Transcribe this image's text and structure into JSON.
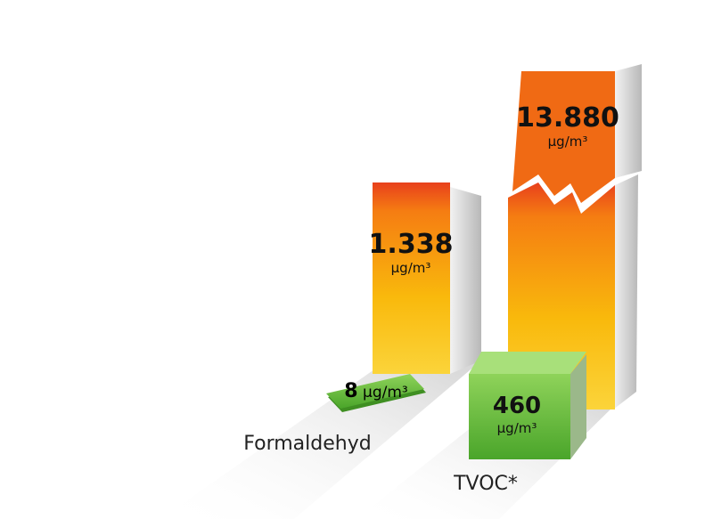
{
  "groups": [
    {
      "label": "Formaldehyd",
      "bars": [
        {
          "value": "1.338",
          "unit": "µg/m³"
        },
        {
          "value": "8",
          "unit": "µg/m³"
        }
      ]
    },
    {
      "label": "TVOC*",
      "bars": [
        {
          "value": "13.880",
          "unit": "µg/m³"
        },
        {
          "value": "460",
          "unit": "µg/m³"
        }
      ]
    }
  ]
}
